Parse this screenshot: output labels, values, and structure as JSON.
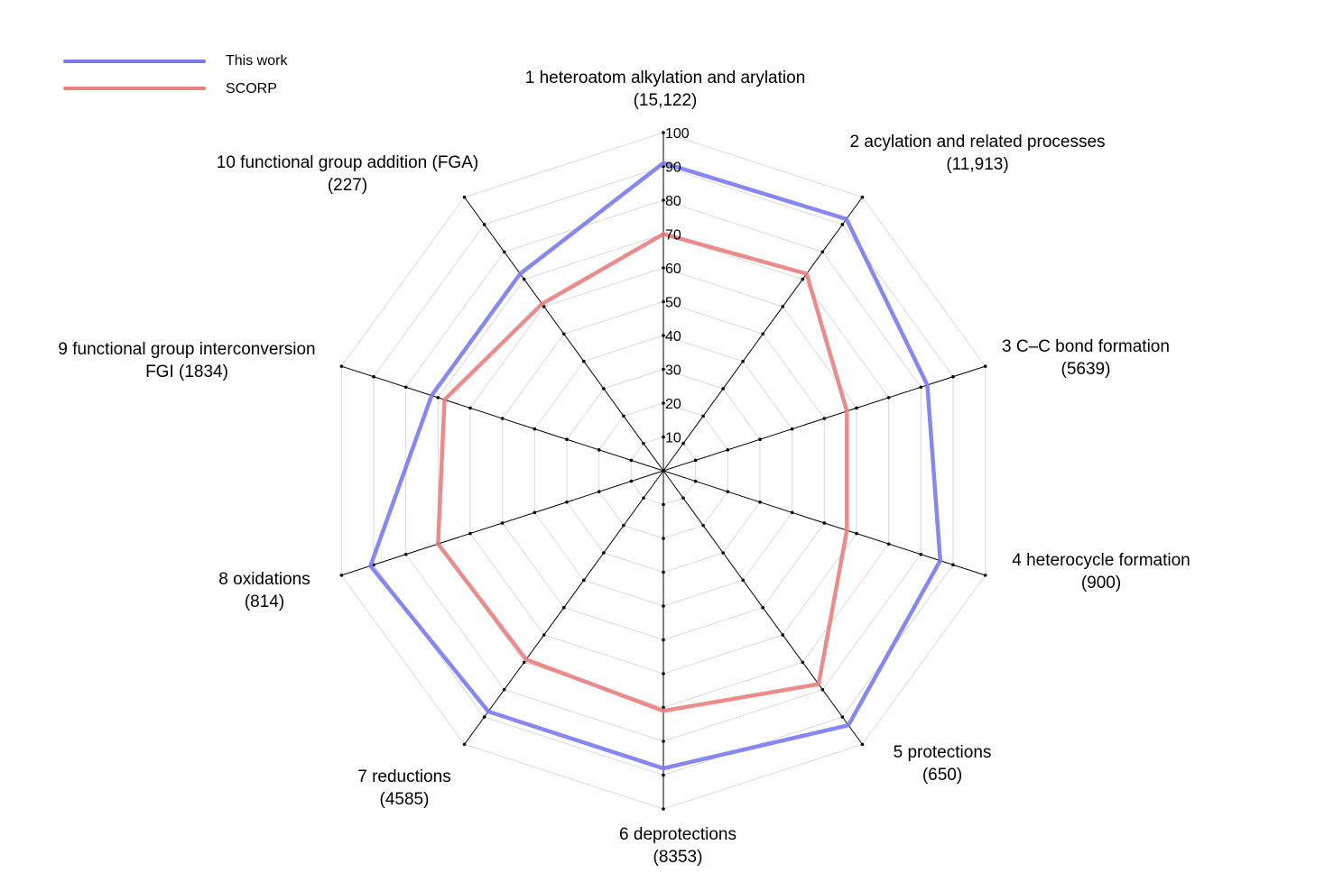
{
  "chart_data": {
    "type": "radar",
    "title": "",
    "axes": [
      {
        "name": "1 heteroatom alkylation and arylation",
        "count": "(15,122)"
      },
      {
        "name": "2 acylation and related processes",
        "count": "(11,913)"
      },
      {
        "name": "3 C–C bond formation",
        "count": "(5639)"
      },
      {
        "name": "4 heterocycle formation",
        "count": "(900)"
      },
      {
        "name": "5 protections",
        "count": "(650)"
      },
      {
        "name": "6 deprotections",
        "count": "(8353)"
      },
      {
        "name": "7 reductions",
        "count": "(4585)"
      },
      {
        "name": "8 oxidations",
        "count": "(814)"
      },
      {
        "name": "9 functional group interconversion",
        "count": "FGI (1834)"
      },
      {
        "name": "10 functional group addition (FGA)",
        "count": "(227)"
      }
    ],
    "ticks": [
      "10",
      "20",
      "30",
      "40",
      "50",
      "60",
      "70",
      "80",
      "90",
      "100"
    ],
    "range": [
      0,
      100
    ],
    "series": [
      {
        "name": "This work",
        "color": "#7a7af0",
        "values": [
          91,
          92,
          82,
          86,
          93,
          88,
          88,
          91,
          72,
          72
        ]
      },
      {
        "name": "SCORP",
        "color": "#e88080",
        "values": [
          70,
          72,
          57,
          57,
          78,
          71,
          69,
          70,
          68,
          61
        ]
      }
    ],
    "legend": {
      "position": "top-left"
    },
    "grid": true
  }
}
